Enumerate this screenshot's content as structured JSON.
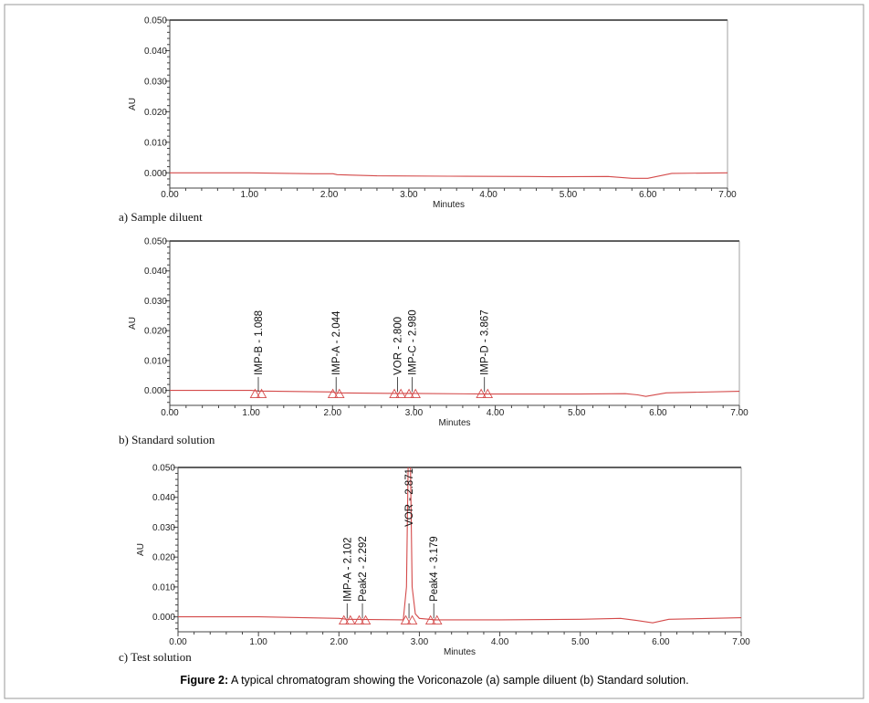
{
  "figure_caption": {
    "bold": "Figure 2:",
    "text": " A typical chromatogram showing the Voriconazole (a) sample diluent (b) Standard solution."
  },
  "colors": {
    "trace": "#d44a4a",
    "axis": "#000000"
  },
  "chart_data": [
    {
      "type": "line",
      "panel": "a)",
      "caption": "Sample diluent",
      "xlabel": "Minutes",
      "ylabel": "AU",
      "xlim": [
        0,
        7
      ],
      "ylim": [
        -0.005,
        0.05
      ],
      "xticks": [
        "0.00",
        "1.00",
        "2.00",
        "3.00",
        "4.00",
        "5.00",
        "6.00",
        "7.00"
      ],
      "yticks": [
        "0.000",
        "0.010",
        "0.020",
        "0.030",
        "0.040",
        "0.050"
      ],
      "trace": {
        "x": [
          0,
          1,
          1.8,
          2.05,
          2.1,
          2.6,
          3.5,
          4.5,
          4.8,
          5.5,
          5.8,
          6.0,
          6.3,
          7
        ],
        "y": [
          0,
          0,
          -0.0003,
          -0.0003,
          -0.0006,
          -0.001,
          -0.0011,
          -0.0012,
          -0.0013,
          -0.0012,
          -0.0018,
          -0.0018,
          -0.0002,
          0
        ]
      },
      "peaks": []
    },
    {
      "type": "line",
      "panel": "b)",
      "caption": "Standard solution",
      "xlabel": "Minutes",
      "ylabel": "AU",
      "xlim": [
        0,
        7
      ],
      "ylim": [
        -0.005,
        0.05
      ],
      "xticks": [
        "0.00",
        "1.00",
        "2.00",
        "3.00",
        "4.00",
        "5.00",
        "6.00",
        "7.00"
      ],
      "yticks": [
        "0.000",
        "0.010",
        "0.020",
        "0.030",
        "0.040",
        "0.050"
      ],
      "trace": {
        "x": [
          0,
          1,
          1.1,
          2,
          2.05,
          2.8,
          3,
          3.9,
          5,
          5.6,
          5.75,
          5.85,
          6.1,
          7
        ],
        "y": [
          0,
          0,
          -0.0002,
          -0.0005,
          -0.0008,
          -0.001,
          -0.001,
          -0.0012,
          -0.0012,
          -0.0011,
          -0.0015,
          -0.002,
          -0.0008,
          -0.0003
        ]
      },
      "peaks": [
        {
          "label": "IMP-B - 1.088",
          "rt": 1.088
        },
        {
          "label": "IMP-A - 2.044",
          "rt": 2.044
        },
        {
          "label": "VOR - 2.800",
          "rt": 2.8
        },
        {
          "label": "IMP-C - 2.980",
          "rt": 2.98
        },
        {
          "label": "IMP-D - 3.867",
          "rt": 3.867
        }
      ]
    },
    {
      "type": "line",
      "panel": "c)",
      "caption": "Test solution",
      "xlabel": "Minutes",
      "ylabel": "AU",
      "xlim": [
        0,
        7
      ],
      "ylim": [
        -0.005,
        0.05
      ],
      "xticks": [
        "0.00",
        "1.00",
        "2.00",
        "3.00",
        "4.00",
        "5.00",
        "6.00",
        "7.00"
      ],
      "yticks": [
        "0.000",
        "0.010",
        "0.020",
        "0.030",
        "0.040",
        "0.050"
      ],
      "trace": {
        "x": [
          0,
          1,
          2,
          2.1,
          2.8,
          2.84,
          2.86,
          2.871,
          2.89,
          2.91,
          2.95,
          3.0,
          3.2,
          4,
          5,
          5.5,
          5.7,
          5.9,
          6.1,
          7
        ],
        "y": [
          0,
          0,
          -0.0005,
          -0.0008,
          -0.001,
          0.01,
          0.05,
          0.058,
          0.05,
          0.01,
          0.001,
          -0.0005,
          -0.001,
          -0.001,
          -0.0008,
          -0.0005,
          -0.0012,
          -0.002,
          -0.0008,
          -0.0003
        ]
      },
      "peaks": [
        {
          "label": "IMP-A - 2.102",
          "rt": 2.102
        },
        {
          "label": "Peak2 - 2.292",
          "rt": 2.292
        },
        {
          "label": "VOR - 2.871",
          "rt": 2.871,
          "top": true
        },
        {
          "label": "Peak4 - 3.179",
          "rt": 3.179
        }
      ]
    }
  ]
}
